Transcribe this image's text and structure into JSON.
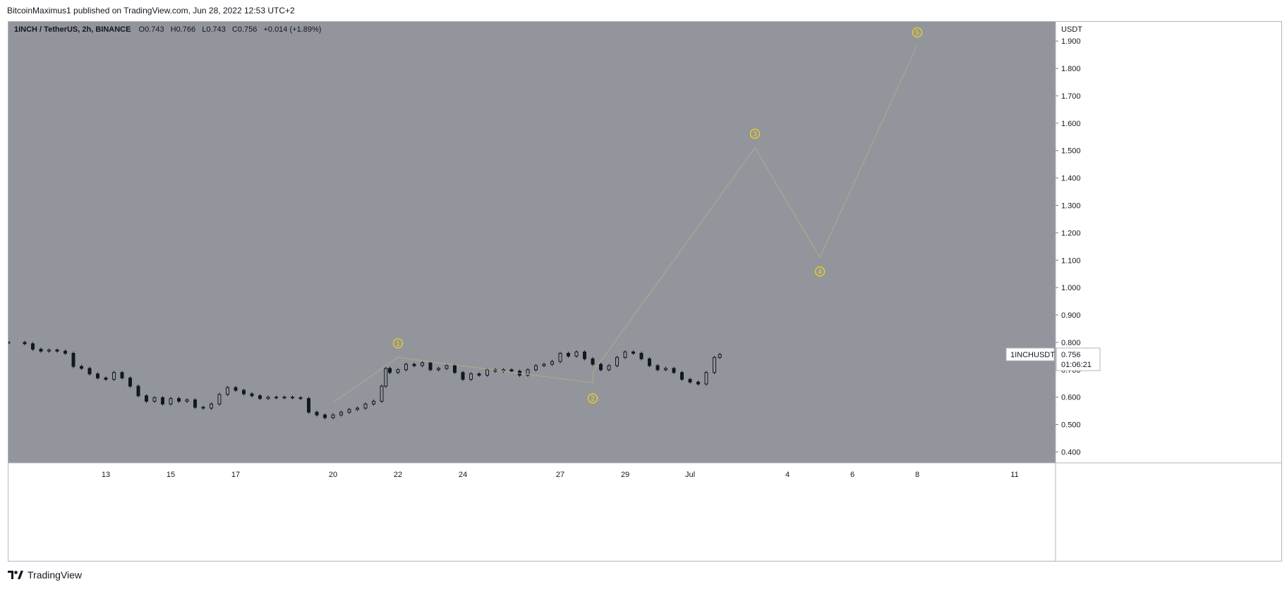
{
  "caption": {
    "publisher": "BitcoinMaximus1",
    "text": "BitcoinMaximus1 published on TradingView.com, Jun 28, 2022 12:53 UTC+2"
  },
  "branding": {
    "name": "TradingView",
    "logo_icon": "tradingview-logo-icon"
  },
  "legend": {
    "symbol": "1INCH / TetherUS, 2h, BINANCE",
    "o_label": "O",
    "o_value": "0.743",
    "h_label": "H",
    "h_value": "0.766",
    "l_label": "L",
    "l_value": "0.743",
    "c_label": "C",
    "c_value": "0.756",
    "change": "+0.014 (+1.89%)"
  },
  "price_tag": {
    "ticker": "1INCHUSDT",
    "price": "0.756",
    "countdown": "01:06:21"
  },
  "colors": {
    "plot_bg": "#93959d",
    "candle": "#131722",
    "wave_line": "#b5a98a",
    "wave_label": "#f5d90a",
    "axis_text": "#131722"
  },
  "chart_data": {
    "type": "line",
    "title": "1INCH / TetherUS, 2h, BINANCE",
    "ylabel": "USDT",
    "ylim": [
      0.36,
      1.97
    ],
    "y_ticks": [
      0.4,
      0.5,
      0.6,
      0.7,
      0.8,
      0.9,
      1.0,
      1.1,
      1.2,
      1.3,
      1.4,
      1.5,
      1.6,
      1.7,
      1.8,
      1.9
    ],
    "y_tick_labels": [
      "0.400",
      "0.500",
      "0.600",
      "0.700",
      "0.800",
      "0.900",
      "1.000",
      "1.100",
      "1.200",
      "1.300",
      "1.400",
      "1.500",
      "1.600",
      "1.700",
      "1.800",
      "1.900"
    ],
    "x_ticks": [
      {
        "label": "13",
        "date": "2022-06-13"
      },
      {
        "label": "15",
        "date": "2022-06-15"
      },
      {
        "label": "17",
        "date": "2022-06-17"
      },
      {
        "label": "20",
        "date": "2022-06-20"
      },
      {
        "label": "22",
        "date": "2022-06-22"
      },
      {
        "label": "24",
        "date": "2022-06-24"
      },
      {
        "label": "27",
        "date": "2022-06-27"
      },
      {
        "label": "29",
        "date": "2022-06-29"
      },
      {
        "label": "Jul",
        "date": "2022-07-01"
      },
      {
        "label": "4",
        "date": "2022-07-04"
      },
      {
        "label": "6",
        "date": "2022-07-06"
      },
      {
        "label": "8",
        "date": "2022-07-08"
      },
      {
        "label": "11",
        "date": "2022-07-11"
      }
    ],
    "price_series": {
      "name": "1INCH / TetherUS",
      "points": [
        [
          "2022-06-10 12:00",
          0.8
        ],
        [
          "2022-06-11 00:00",
          0.795
        ],
        [
          "2022-06-11 06:00",
          0.775
        ],
        [
          "2022-06-11 12:00",
          0.768
        ],
        [
          "2022-06-11 18:00",
          0.772
        ],
        [
          "2022-06-12 00:00",
          0.768
        ],
        [
          "2022-06-12 06:00",
          0.76
        ],
        [
          "2022-06-12 12:00",
          0.712
        ],
        [
          "2022-06-12 18:00",
          0.705
        ],
        [
          "2022-06-13 00:00",
          0.685
        ],
        [
          "2022-06-13 06:00",
          0.67
        ],
        [
          "2022-06-13 12:00",
          0.665
        ],
        [
          "2022-06-13 18:00",
          0.69
        ],
        [
          "2022-06-14 00:00",
          0.67
        ],
        [
          "2022-06-14 06:00",
          0.64
        ],
        [
          "2022-06-14 12:00",
          0.605
        ],
        [
          "2022-06-14 18:00",
          0.585
        ],
        [
          "2022-06-15 00:00",
          0.598
        ],
        [
          "2022-06-15 06:00",
          0.575
        ],
        [
          "2022-06-15 12:00",
          0.595
        ],
        [
          "2022-06-15 18:00",
          0.585
        ],
        [
          "2022-06-16 00:00",
          0.59
        ],
        [
          "2022-06-16 06:00",
          0.563
        ],
        [
          "2022-06-16 12:00",
          0.56
        ],
        [
          "2022-06-16 18:00",
          0.575
        ],
        [
          "2022-06-17 00:00",
          0.61
        ],
        [
          "2022-06-17 06:00",
          0.635
        ],
        [
          "2022-06-17 12:00",
          0.625
        ],
        [
          "2022-06-17 18:00",
          0.612
        ],
        [
          "2022-06-18 00:00",
          0.605
        ],
        [
          "2022-06-18 06:00",
          0.595
        ],
        [
          "2022-06-18 12:00",
          0.6
        ],
        [
          "2022-06-18 18:00",
          0.598
        ],
        [
          "2022-06-19 00:00",
          0.6
        ],
        [
          "2022-06-19 06:00",
          0.598
        ],
        [
          "2022-06-19 12:00",
          0.595
        ],
        [
          "2022-06-19 18:00",
          0.545
        ],
        [
          "2022-06-20 00:00",
          0.535
        ],
        [
          "2022-06-20 06:00",
          0.525
        ],
        [
          "2022-06-20 12:00",
          0.535
        ],
        [
          "2022-06-20 18:00",
          0.545
        ],
        [
          "2022-06-21 00:00",
          0.555
        ],
        [
          "2022-06-21 06:00",
          0.56
        ],
        [
          "2022-06-21 12:00",
          0.575
        ],
        [
          "2022-06-21 18:00",
          0.585
        ],
        [
          "2022-06-22 00:00",
          0.64
        ],
        [
          "2022-06-22 03:00",
          0.705
        ],
        [
          "2022-06-22 06:00",
          0.69
        ],
        [
          "2022-06-22 12:00",
          0.7
        ],
        [
          "2022-06-22 18:00",
          0.72
        ],
        [
          "2022-06-23 00:00",
          0.715
        ],
        [
          "2022-06-23 06:00",
          0.725
        ],
        [
          "2022-06-23 12:00",
          0.7
        ],
        [
          "2022-06-23 18:00",
          0.705
        ],
        [
          "2022-06-24 00:00",
          0.715
        ],
        [
          "2022-06-24 06:00",
          0.69
        ],
        [
          "2022-06-24 12:00",
          0.665
        ],
        [
          "2022-06-24 18:00",
          0.685
        ],
        [
          "2022-06-25 00:00",
          0.68
        ],
        [
          "2022-06-25 06:00",
          0.7
        ],
        [
          "2022-06-25 12:00",
          0.695
        ],
        [
          "2022-06-25 18:00",
          0.7
        ],
        [
          "2022-06-26 00:00",
          0.695
        ],
        [
          "2022-06-26 06:00",
          0.68
        ],
        [
          "2022-06-26 12:00",
          0.7
        ],
        [
          "2022-06-26 18:00",
          0.715
        ],
        [
          "2022-06-27 00:00",
          0.72
        ],
        [
          "2022-06-27 06:00",
          0.73
        ],
        [
          "2022-06-27 12:00",
          0.76
        ],
        [
          "2022-06-27 18:00",
          0.75
        ],
        [
          "2022-06-28 00:00",
          0.765
        ],
        [
          "2022-06-28 06:00",
          0.74
        ],
        [
          "2022-06-28 12:00",
          0.72
        ],
        [
          "2022-06-28 18:00",
          0.7
        ],
        [
          "2022-06-29 00:00",
          0.715
        ],
        [
          "2022-06-29 06:00",
          0.745
        ],
        [
          "2022-06-29 12:00",
          0.765
        ],
        [
          "2022-06-29 18:00",
          0.76
        ],
        [
          "2022-06-30 00:00",
          0.74
        ],
        [
          "2022-06-30 06:00",
          0.715
        ],
        [
          "2022-06-30 12:00",
          0.7
        ],
        [
          "2022-06-30 18:00",
          0.705
        ],
        [
          "2022-07-01 00:00",
          0.69
        ],
        [
          "2022-07-01 06:00",
          0.665
        ],
        [
          "2022-07-01 12:00",
          0.655
        ],
        [
          "2022-07-01 18:00",
          0.648
        ],
        [
          "2022-07-02 00:00",
          0.69
        ],
        [
          "2022-07-02 06:00",
          0.745
        ],
        [
          "2022-07-02 10:00",
          0.756
        ]
      ]
    },
    "wave_projection": {
      "name": "Elliott wave count",
      "points": [
        {
          "label": "1",
          "date": "2022-06-22",
          "value": 0.745
        },
        {
          "label": "2",
          "date": "2022-06-28",
          "value": 0.652
        },
        {
          "label": "3",
          "date": "2022-07-03",
          "value": 1.51
        },
        {
          "label": "4",
          "date": "2022-07-05",
          "value": 1.11
        },
        {
          "label": "5",
          "date": "2022-07-08",
          "value": 1.885
        }
      ],
      "start": {
        "date": "2022-06-20",
        "value": 0.58
      },
      "path_dates": [
        "2022-06-20",
        "2022-06-22",
        "2022-06-28",
        "2022-06-28 12:00",
        "2022-07-03",
        "2022-07-05",
        "2022-07-08"
      ],
      "path_values": [
        0.58,
        0.745,
        0.652,
        0.69,
        1.51,
        1.11,
        1.885
      ]
    }
  }
}
